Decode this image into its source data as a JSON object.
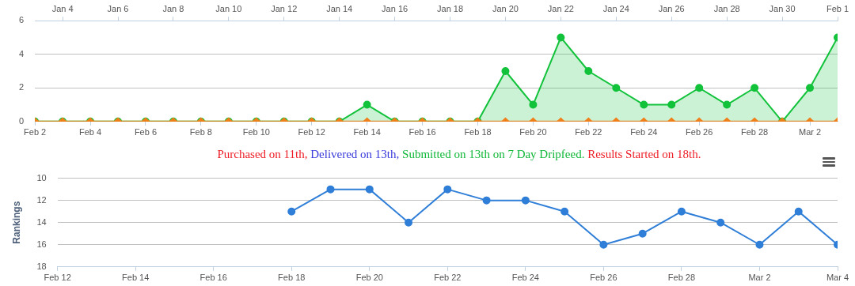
{
  "chart_data": [
    {
      "type": "area",
      "x": [
        "--02-02",
        "--02-03",
        "--02-04",
        "--02-05",
        "--02-06",
        "--02-07",
        "--02-08",
        "--02-09",
        "--02-10",
        "--02-11",
        "--02-12",
        "--02-13",
        "--02-14",
        "--02-15",
        "--02-16",
        "--02-17",
        "--02-18",
        "--02-19",
        "--02-20",
        "--02-21",
        "--02-22",
        "--02-23",
        "--02-24",
        "--02-25",
        "--02-26",
        "--02-27",
        "--02-28",
        "--03-01",
        "--03-02",
        "--03-03"
      ],
      "series": [
        {
          "color": "#11c23a",
          "marker": "circle",
          "values": [
            0,
            0,
            0,
            0,
            0,
            0,
            0,
            0,
            0,
            0,
            0,
            0,
            1,
            0,
            0,
            0,
            0,
            3,
            1,
            5,
            3,
            2,
            1,
            1,
            2,
            1,
            2,
            0,
            2,
            5
          ]
        },
        {
          "type": "line",
          "color": "#f07f1a",
          "marker": "diamond",
          "values": [
            0,
            0,
            0,
            0,
            0,
            0,
            0,
            0,
            0,
            0,
            0,
            0,
            0,
            0,
            0,
            0,
            0,
            0,
            0,
            0,
            0,
            0,
            0,
            0,
            0,
            0,
            0,
            0,
            0,
            0
          ]
        }
      ],
      "xlim": [
        "--02-02",
        "--03-03"
      ],
      "xticks": [
        {
          "value": "--02-02",
          "label": "Feb 2"
        },
        {
          "value": "--02-04",
          "label": "Feb 4"
        },
        {
          "value": "--02-06",
          "label": "Feb 6"
        },
        {
          "value": "--02-08",
          "label": "Feb 8"
        },
        {
          "value": "--02-10",
          "label": "Feb 10"
        },
        {
          "value": "--02-12",
          "label": "Feb 12"
        },
        {
          "value": "--02-14",
          "label": "Feb 14"
        },
        {
          "value": "--02-16",
          "label": "Feb 16"
        },
        {
          "value": "--02-18",
          "label": "Feb 18"
        },
        {
          "value": "--02-20",
          "label": "Feb 20"
        },
        {
          "value": "--02-22",
          "label": "Feb 22"
        },
        {
          "value": "--02-24",
          "label": "Feb 24"
        },
        {
          "value": "--02-26",
          "label": "Feb 26"
        },
        {
          "value": "--02-28",
          "label": "Feb 28"
        },
        {
          "value": "--03-02",
          "label": "Mar 2"
        }
      ],
      "x2lim": [
        "--01-03",
        "--02-01"
      ],
      "x2ticks": [
        {
          "value": "--01-04",
          "label": "Jan 4"
        },
        {
          "value": "--01-06",
          "label": "Jan 6"
        },
        {
          "value": "--01-08",
          "label": "Jan 8"
        },
        {
          "value": "--01-10",
          "label": "Jan 10"
        },
        {
          "value": "--01-12",
          "label": "Jan 12"
        },
        {
          "value": "--01-14",
          "label": "Jan 14"
        },
        {
          "value": "--01-16",
          "label": "Jan 16"
        },
        {
          "value": "--01-18",
          "label": "Jan 18"
        },
        {
          "value": "--01-20",
          "label": "Jan 20"
        },
        {
          "value": "--01-22",
          "label": "Jan 22"
        },
        {
          "value": "--01-24",
          "label": "Jan 24"
        },
        {
          "value": "--01-26",
          "label": "Jan 26"
        },
        {
          "value": "--01-28",
          "label": "Jan 28"
        },
        {
          "value": "--01-30",
          "label": "Jan 30"
        },
        {
          "value": "--02-01",
          "label": "Feb 1"
        }
      ],
      "ylim": [
        0,
        6
      ],
      "yticks": [
        0,
        2,
        4,
        6
      ],
      "grid": "y",
      "legend": false
    },
    {
      "type": "line",
      "ylabel": "Rankings",
      "annotations": [
        "Purchased on 11th,",
        "Delivered on 13th,",
        "Submitted on 13th on 7 Day Dripfeed.",
        "Results Started on 18th."
      ],
      "x": [
        "--02-18",
        "--02-19",
        "--02-20",
        "--02-21",
        "--02-22",
        "--02-23",
        "--02-24",
        "--02-25",
        "--02-26",
        "--02-27",
        "--02-28",
        "--03-01",
        "--03-02",
        "--03-03",
        "--03-04"
      ],
      "series": [
        {
          "color": "#2f7ed8",
          "marker": "circle",
          "values": [
            13,
            11,
            11,
            14,
            11,
            12,
            12,
            13,
            16,
            15,
            13,
            14,
            16,
            13,
            16
          ]
        }
      ],
      "xlim": [
        "--02-12",
        "--03-04"
      ],
      "xticks": [
        {
          "value": "--02-12",
          "label": "Feb 12"
        },
        {
          "value": "--02-14",
          "label": "Feb 14"
        },
        {
          "value": "--02-16",
          "label": "Feb 16"
        },
        {
          "value": "--02-18",
          "label": "Feb 18"
        },
        {
          "value": "--02-20",
          "label": "Feb 20"
        },
        {
          "value": "--02-22",
          "label": "Feb 22"
        },
        {
          "value": "--02-24",
          "label": "Feb 24"
        },
        {
          "value": "--02-26",
          "label": "Feb 26"
        },
        {
          "value": "--02-28",
          "label": "Feb 28"
        },
        {
          "value": "--03-02",
          "label": "Mar 2"
        },
        {
          "value": "--03-04",
          "label": "Mar 4"
        }
      ],
      "ylim": [
        18,
        10
      ],
      "yticks": [
        10,
        12,
        14,
        16,
        18
      ],
      "grid": "y",
      "legend": false
    }
  ]
}
